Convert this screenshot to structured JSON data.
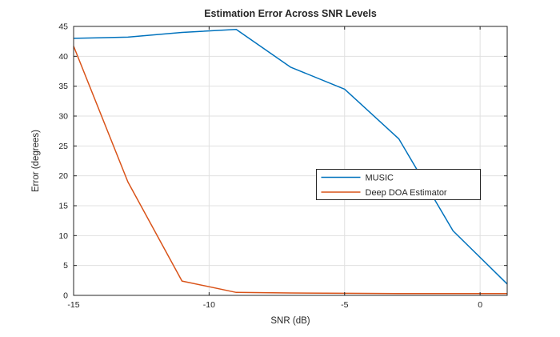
{
  "figure": {
    "background_color": "#ffffff",
    "axis_color": "#262626",
    "grid_color": "#e0e0e0",
    "legend_border_color": "#262626",
    "legend_background": "#ffffff"
  },
  "chart_data": {
    "type": "line",
    "title": "Estimation Error Across SNR Levels",
    "xlabel": "SNR (dB)",
    "ylabel": "Error (degrees)",
    "x": [
      -15,
      -13,
      -11,
      -9,
      -7,
      -5,
      -3,
      -1,
      1
    ],
    "series": [
      {
        "name": "MUSIC",
        "color": "#0072BD",
        "values": [
          43.0,
          43.2,
          44.0,
          44.5,
          38.2,
          34.5,
          26.2,
          10.8,
          1.9
        ]
      },
      {
        "name": "Deep DOA Estimator",
        "color": "#D95319",
        "values": [
          41.7,
          19.0,
          2.4,
          0.5,
          0.4,
          0.35,
          0.3,
          0.3,
          0.3
        ]
      }
    ],
    "xlim": [
      -15,
      1
    ],
    "ylim": [
      0,
      45
    ],
    "xticks": [
      -15,
      -10,
      -5,
      0
    ],
    "yticks": [
      0,
      5,
      10,
      15,
      20,
      25,
      30,
      35,
      40,
      45
    ],
    "grid": true,
    "box": true,
    "legend_position": "inside-middle-right"
  }
}
